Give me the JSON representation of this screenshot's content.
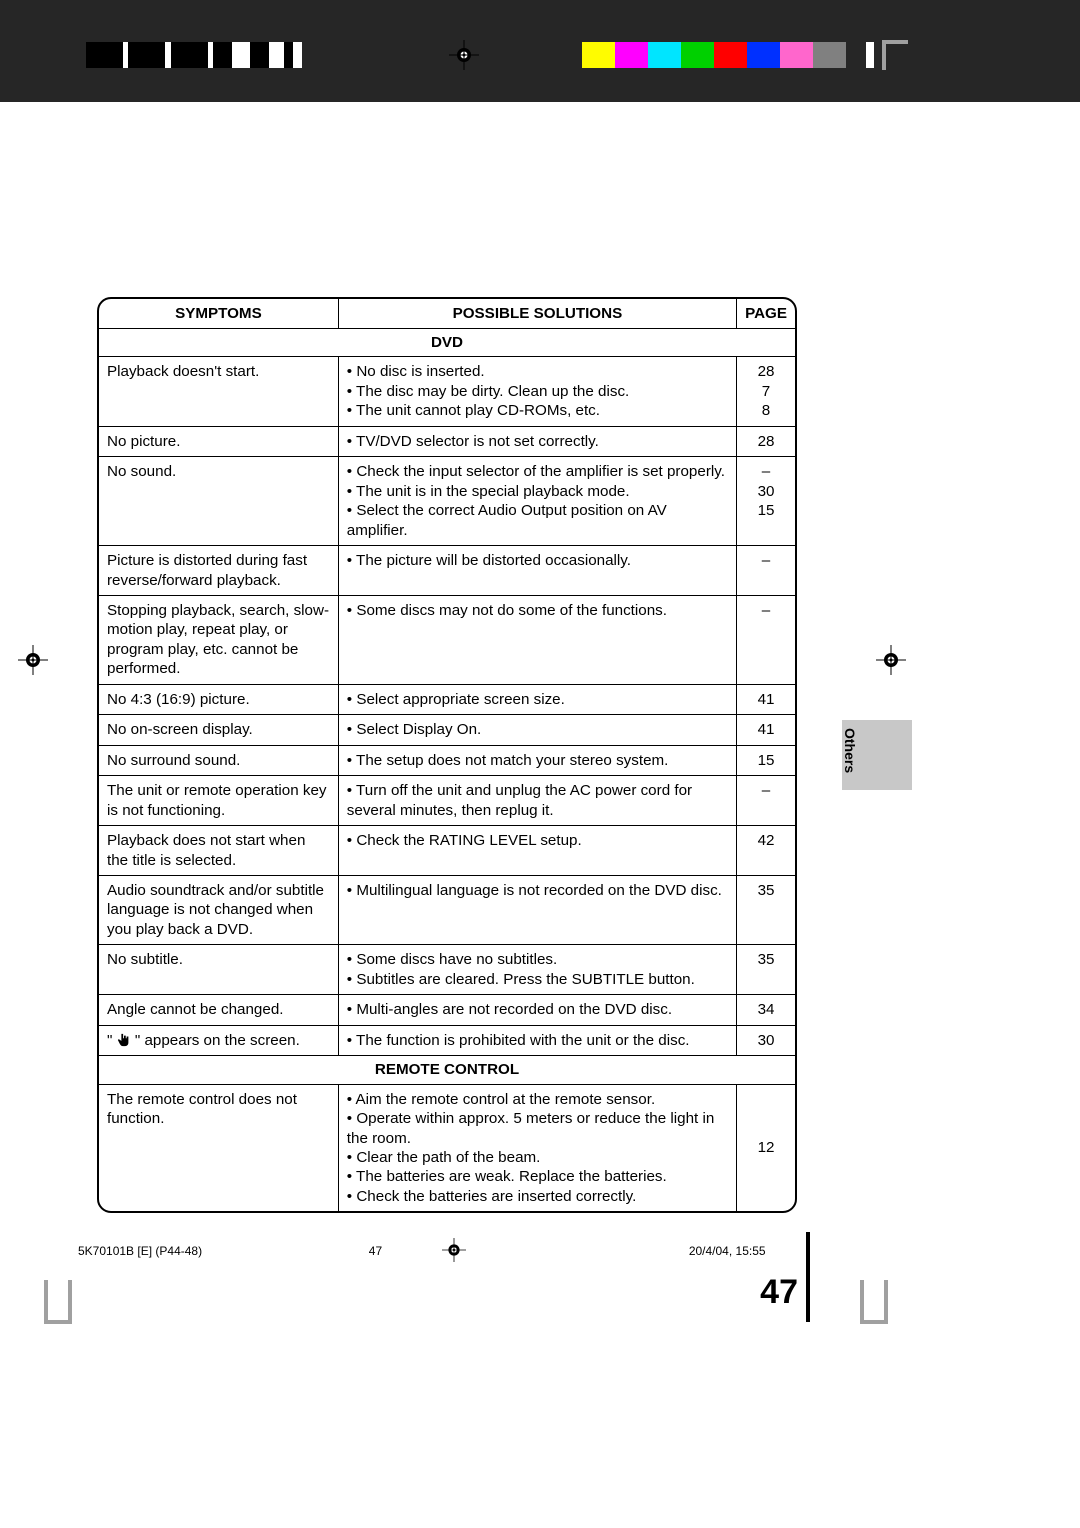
{
  "registration": {
    "color_bar": [
      "#fffc00",
      "#ff00ff",
      "#00e5ff",
      "#00d000",
      "#ff0000",
      "#0030ff",
      "#ff66cc",
      "#808080"
    ]
  },
  "header": {
    "col_symptoms": "SYMPTOMS",
    "col_solutions": "POSSIBLE SOLUTIONS",
    "col_page": "PAGE"
  },
  "sections": {
    "dvd": "DVD",
    "remote": "REMOTE CONTROL"
  },
  "rows": [
    {
      "sym": "Playback doesn't start.",
      "sol": "• No disc is inserted.\n• The disc may be dirty. Clean up the disc.\n• The unit cannot play CD-ROMs, etc.",
      "pg": "28\n7\n8"
    },
    {
      "sym": "No picture.",
      "sol": "• TV/DVD selector is not set correctly.",
      "pg": "28"
    },
    {
      "sym": "No sound.",
      "sol": "• Check the input selector of the amplifier is set properly.\n• The unit is in the special playback mode.\n• Select the correct Audio Output position on AV amplifier.",
      "pg": "–\n30\n15"
    },
    {
      "sym": "Picture is distorted during fast reverse/forward playback.",
      "sol": "• The picture will be distorted occasionally.",
      "pg": "–"
    },
    {
      "sym": "Stopping playback, search, slow-motion play, repeat play, or program play, etc. cannot be performed.",
      "sol": "• Some discs may not do some of the functions.",
      "pg": "–"
    },
    {
      "sym": "No 4:3 (16:9) picture.",
      "sol": "• Select appropriate screen size.",
      "pg": "41"
    },
    {
      "sym": "No on-screen display.",
      "sol": "• Select Display On.",
      "pg": "41"
    },
    {
      "sym": "No surround sound.",
      "sol": "• The setup does not match your stereo system.",
      "pg": "15"
    },
    {
      "sym": "The unit or remote operation key is not functioning.",
      "sol": "• Turn off the unit and unplug the AC power cord for several minutes, then replug it.",
      "pg": "–"
    },
    {
      "sym": "Playback does not start when the title is selected.",
      "sol": "• Check the RATING LEVEL setup.",
      "pg": "42"
    },
    {
      "sym": "Audio soundtrack and/or subtitle language is not changed when you play back a DVD.",
      "sol": "• Multilingual language is not recorded on the DVD disc.",
      "pg": "35"
    },
    {
      "sym": "No subtitle.",
      "sol": "• Some discs have no subtitles.\n• Subtitles are cleared. Press the SUBTITLE button.",
      "pg": "35"
    },
    {
      "sym": "Angle cannot be changed.",
      "sol": "• Multi-angles are not recorded on the DVD disc.",
      "pg": "34"
    },
    {
      "sym": "HAND_ICON",
      "sol": "• The function is prohibited with the unit or the disc.",
      "pg": "30"
    }
  ],
  "remote_row": {
    "sym": "The remote control does not function.",
    "sol": "• Aim the remote control at the remote sensor.\n• Operate within approx. 5 meters or reduce the light in the room.\n• Clear the path of the beam.\n• The batteries are weak. Replace the batteries.\n• Check the batteries are inserted correctly.",
    "pg": "12"
  },
  "hand_row_text": {
    "pre": "\" ",
    "post": " \" appears on the screen."
  },
  "side_tab": "Others",
  "page_number": "47",
  "footer": {
    "left": "5K70101B [E] (P44-48)",
    "mid": "47",
    "right": "20/4/04, 15:55"
  }
}
